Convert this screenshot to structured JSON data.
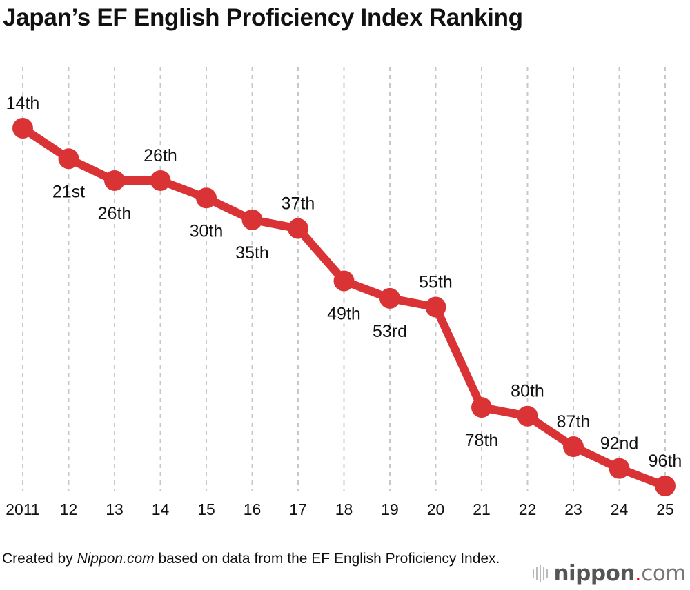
{
  "title": "Japan’s EF English Proficiency Index Ranking",
  "footer": {
    "prefix": "Created by ",
    "source_name": "Nippon.com",
    "suffix": " based on data from the EF English Proficiency Index."
  },
  "logo": {
    "text": "nippon.com"
  },
  "colors": {
    "line": "#d93335",
    "grid": "#c8c8c8"
  },
  "chart_data": {
    "type": "line",
    "title": "Japan’s EF English Proficiency Index Ranking",
    "x": [
      2011,
      2012,
      2013,
      2014,
      2015,
      2016,
      2017,
      2018,
      2019,
      2020,
      2021,
      2022,
      2023,
      2024,
      2025
    ],
    "tick_labels": [
      "2011",
      "12",
      "13",
      "14",
      "15",
      "16",
      "17",
      "18",
      "19",
      "20",
      "21",
      "22",
      "23",
      "24",
      "25"
    ],
    "series": [
      {
        "values": [
          14,
          21,
          26,
          26,
          30,
          35,
          37,
          49,
          53,
          55,
          78,
          80,
          87,
          92,
          96
        ],
        "data_labels": [
          "14th",
          "21st",
          "26th",
          "26th",
          "30th",
          "35th",
          "37th",
          "49th",
          "53rd",
          "55th",
          "78th",
          "80th",
          "87th",
          "92nd",
          "96th"
        ],
        "label_positions": [
          "above",
          "below",
          "below",
          "above",
          "below",
          "below",
          "above",
          "below",
          "below",
          "above",
          "below",
          "above",
          "above",
          "above",
          "above"
        ]
      }
    ],
    "y_inverted": true,
    "ylim": [
      14,
      96
    ],
    "grid": "vertical dashed",
    "xlabel": "",
    "ylabel": ""
  }
}
